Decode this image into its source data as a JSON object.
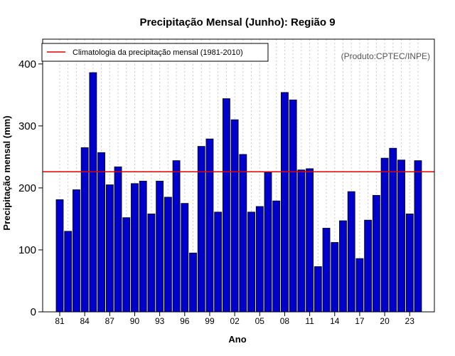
{
  "chart_data": {
    "type": "bar",
    "title": "Precipitação Mensal (Junho): Região 9",
    "xlabel": "Ano",
    "ylabel": "Precipitação mensal (mm)",
    "ylim": [
      0,
      440
    ],
    "yticks": [
      0,
      100,
      200,
      300,
      400
    ],
    "xtick_labels": [
      {
        "year": 1981,
        "label": "81"
      },
      {
        "year": 1984,
        "label": "84"
      },
      {
        "year": 1987,
        "label": "87"
      },
      {
        "year": 1990,
        "label": "90"
      },
      {
        "year": 1993,
        "label": "93"
      },
      {
        "year": 1996,
        "label": "96"
      },
      {
        "year": 1999,
        "label": "99"
      },
      {
        "year": 2002,
        "label": "02"
      },
      {
        "year": 2005,
        "label": "05"
      },
      {
        "year": 2008,
        "label": "08"
      },
      {
        "year": 2011,
        "label": "11"
      },
      {
        "year": 2014,
        "label": "14"
      },
      {
        "year": 2017,
        "label": "17"
      },
      {
        "year": 2020,
        "label": "20"
      },
      {
        "year": 2023,
        "label": "23"
      }
    ],
    "years": [
      1981,
      1982,
      1983,
      1984,
      1985,
      1986,
      1987,
      1988,
      1989,
      1990,
      1991,
      1992,
      1993,
      1994,
      1995,
      1996,
      1997,
      1998,
      1999,
      2000,
      2001,
      2002,
      2003,
      2004,
      2005,
      2006,
      2007,
      2008,
      2009,
      2010,
      2011,
      2012,
      2013,
      2014,
      2015,
      2016,
      2017,
      2018,
      2019,
      2020,
      2021,
      2022,
      2023,
      2024
    ],
    "values": [
      181,
      130,
      197,
      265,
      386,
      257,
      205,
      234,
      152,
      207,
      211,
      158,
      211,
      185,
      244,
      175,
      95,
      267,
      279,
      161,
      344,
      310,
      254,
      161,
      170,
      225,
      179,
      354,
      342,
      229,
      231,
      73,
      135,
      112,
      147,
      194,
      86,
      148,
      188,
      248,
      264,
      245,
      158,
      244
    ],
    "climatology_value": 226,
    "legend": {
      "position": "top-left",
      "label": "Climatologia da precipitação mensal (1981-2010)"
    },
    "credit": "(Produto:CPTEC/INPE)",
    "grid": "vertical-dotted",
    "colors": {
      "bar_fill": "#0000cc",
      "bar_stroke": "#000000",
      "climatology_line": "#dd0000",
      "grid": "#cccccc",
      "credit_text": "#555555"
    }
  }
}
